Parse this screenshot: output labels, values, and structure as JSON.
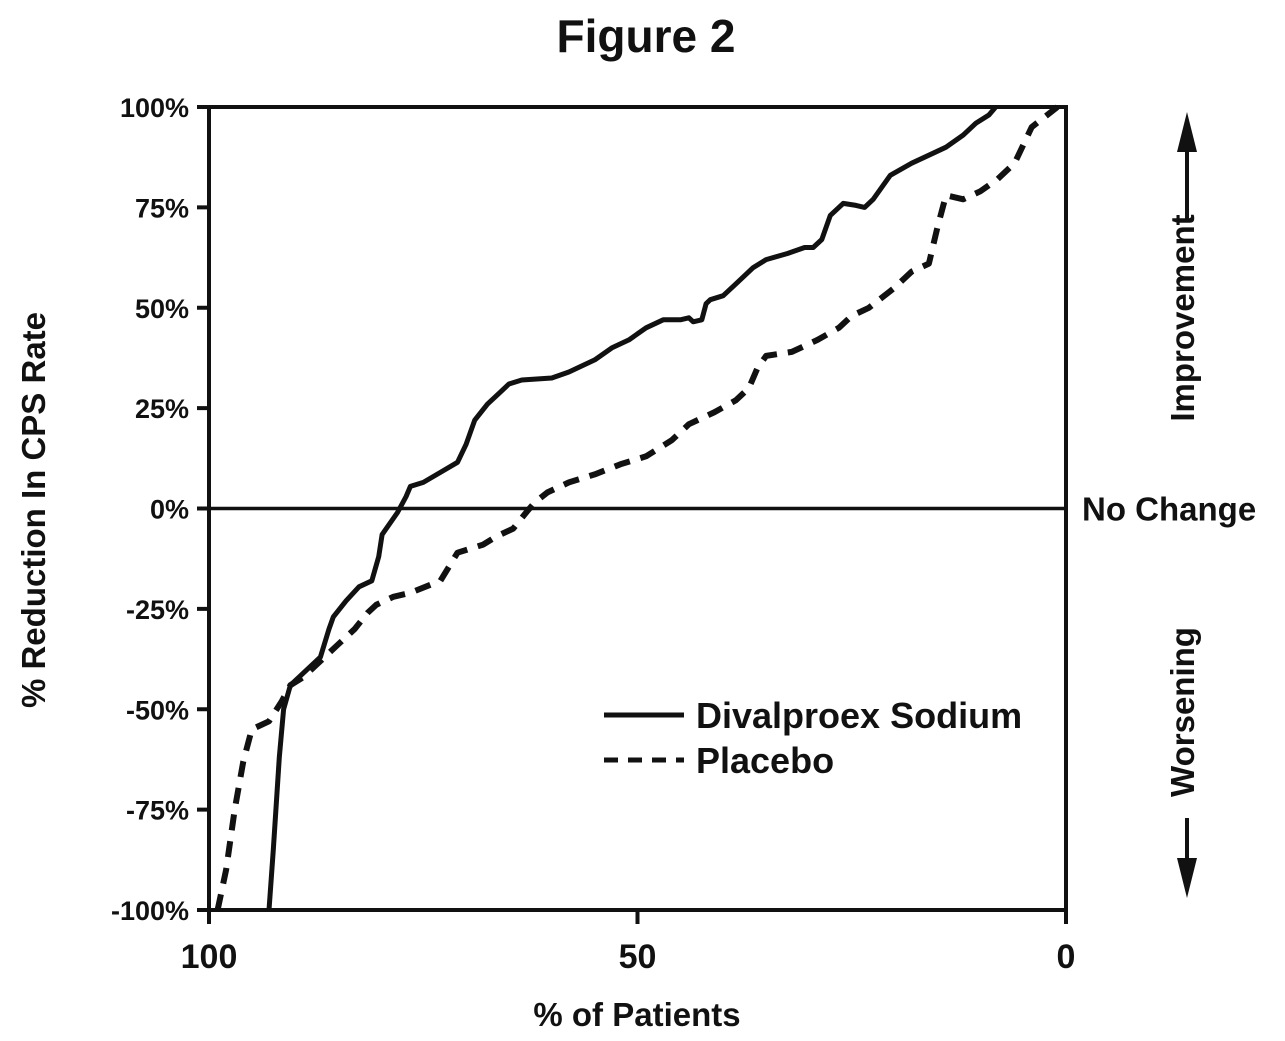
{
  "chart_data": {
    "type": "line",
    "title": "Figure 2",
    "xlabel": "% of Patients",
    "ylabel": "% Reduction In CPS Rate",
    "xlim": [
      100,
      0
    ],
    "ylim": [
      -100,
      100
    ],
    "x_ticks": [
      {
        "value": 100,
        "label": "100"
      },
      {
        "value": 50,
        "label": "50"
      },
      {
        "value": 0,
        "label": "0"
      }
    ],
    "y_ticks": [
      {
        "value": 100,
        "label": "100%"
      },
      {
        "value": 75,
        "label": "75%"
      },
      {
        "value": 50,
        "label": "50%"
      },
      {
        "value": 25,
        "label": "25%"
      },
      {
        "value": 0,
        "label": "0%"
      },
      {
        "value": -25,
        "label": "-25%"
      },
      {
        "value": -50,
        "label": "-50%"
      },
      {
        "value": -75,
        "label": "-75%"
      },
      {
        "value": -100,
        "label": "-100%"
      }
    ],
    "reference_line": {
      "y": 0,
      "label": "No Change"
    },
    "side_annotations": {
      "upper": "Improvement",
      "lower": "Worsening"
    },
    "grid": false,
    "legend": {
      "position": "bottom-right"
    },
    "series": [
      {
        "name": "Divalproex Sodium",
        "style": "solid",
        "color": "#111111",
        "points": [
          [
            93,
            -100
          ],
          [
            92.5,
            -85
          ],
          [
            91.8,
            -62
          ],
          [
            91.3,
            -50
          ],
          [
            90.5,
            -44
          ],
          [
            88.5,
            -40
          ],
          [
            87,
            -37
          ],
          [
            86,
            -30
          ],
          [
            85.5,
            -27
          ],
          [
            84,
            -23
          ],
          [
            82.5,
            -19.5
          ],
          [
            81,
            -18
          ],
          [
            80.2,
            -12
          ],
          [
            79.8,
            -6.5
          ],
          [
            78,
            -1
          ],
          [
            77,
            3
          ],
          [
            76.5,
            5.5
          ],
          [
            75,
            6.5
          ],
          [
            73,
            9
          ],
          [
            71,
            11.5
          ],
          [
            70,
            16
          ],
          [
            69,
            22
          ],
          [
            67.5,
            26
          ],
          [
            66,
            29
          ],
          [
            65,
            31
          ],
          [
            63.5,
            32
          ],
          [
            60,
            32.5
          ],
          [
            58,
            34
          ],
          [
            55,
            37
          ],
          [
            53,
            40
          ],
          [
            51,
            42
          ],
          [
            49,
            45
          ],
          [
            47,
            47
          ],
          [
            45,
            47
          ],
          [
            44,
            47.5
          ],
          [
            43.5,
            46.5
          ],
          [
            42.5,
            47
          ],
          [
            42,
            51
          ],
          [
            41.5,
            52
          ],
          [
            40,
            53
          ],
          [
            38.5,
            56
          ],
          [
            36.5,
            60
          ],
          [
            35,
            62
          ],
          [
            32.5,
            63.5
          ],
          [
            30.5,
            65
          ],
          [
            29.5,
            65
          ],
          [
            28.5,
            67
          ],
          [
            27.5,
            73
          ],
          [
            26,
            76
          ],
          [
            24.5,
            75.5
          ],
          [
            23.5,
            75
          ],
          [
            22.5,
            77
          ],
          [
            20.5,
            83
          ],
          [
            18,
            86
          ],
          [
            16,
            88
          ],
          [
            14,
            90
          ],
          [
            12,
            93
          ],
          [
            10.5,
            96
          ],
          [
            9,
            98
          ],
          [
            8.2,
            100
          ]
        ]
      },
      {
        "name": "Placebo",
        "style": "dashed",
        "color": "#111111",
        "points": [
          [
            99,
            -100
          ],
          [
            98,
            -90
          ],
          [
            97,
            -75
          ],
          [
            96,
            -63
          ],
          [
            95,
            -55
          ],
          [
            93,
            -53
          ],
          [
            91.5,
            -48
          ],
          [
            90.5,
            -44
          ],
          [
            89,
            -42
          ],
          [
            87,
            -38
          ],
          [
            85,
            -34
          ],
          [
            83,
            -30
          ],
          [
            81.5,
            -26
          ],
          [
            80.5,
            -24
          ],
          [
            78.5,
            -22
          ],
          [
            76.5,
            -21
          ],
          [
            73,
            -18
          ],
          [
            71,
            -11
          ],
          [
            68,
            -9
          ],
          [
            66.5,
            -7
          ],
          [
            64.5,
            -5
          ],
          [
            62.8,
            -0.5
          ],
          [
            62,
            1.5
          ],
          [
            60.5,
            4
          ],
          [
            58,
            6.5
          ],
          [
            55,
            8.5
          ],
          [
            52,
            11
          ],
          [
            49,
            13
          ],
          [
            46,
            17
          ],
          [
            44,
            21
          ],
          [
            41,
            24
          ],
          [
            38.5,
            27
          ],
          [
            37,
            30
          ],
          [
            36,
            35
          ],
          [
            35,
            38
          ],
          [
            32,
            39
          ],
          [
            29,
            42
          ],
          [
            26.5,
            45
          ],
          [
            25,
            48
          ],
          [
            23,
            50
          ],
          [
            20,
            55
          ],
          [
            18,
            59
          ],
          [
            16,
            61
          ],
          [
            15,
            70
          ],
          [
            14,
            78
          ],
          [
            12,
            77
          ],
          [
            10,
            79
          ],
          [
            8,
            82
          ],
          [
            6,
            86
          ],
          [
            4,
            95
          ],
          [
            1,
            100
          ]
        ]
      }
    ]
  }
}
